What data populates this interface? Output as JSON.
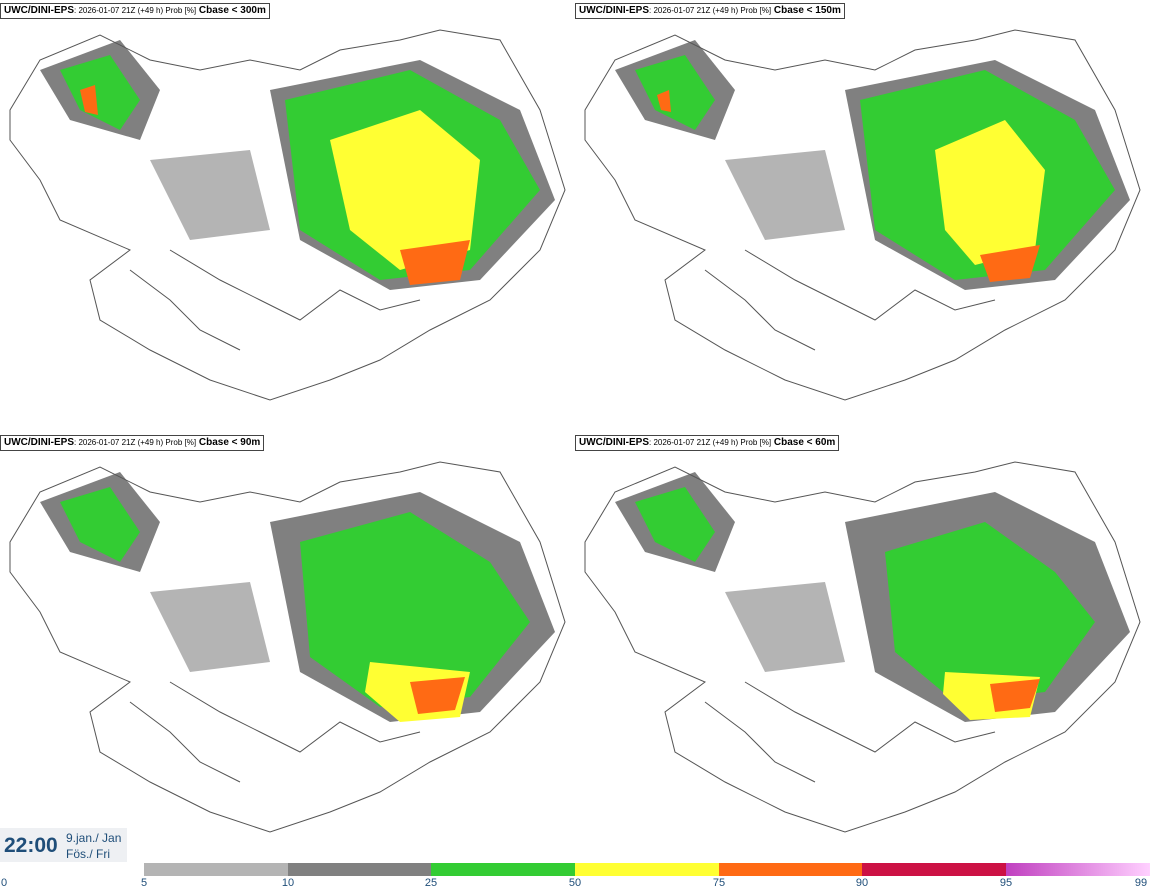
{
  "panels": [
    {
      "model": "UWC/DINI-EPS",
      "meta": ": 2026-01-07 21Z (+49 h) Prob [%]",
      "threshold": "Cbase < 300m"
    },
    {
      "model": "UWC/DINI-EPS",
      "meta": ": 2026-01-07 21Z (+49 h) Prob [%]",
      "threshold": "Cbase < 150m"
    },
    {
      "model": "UWC/DINI-EPS",
      "meta": ": 2026-01-07 21Z (+49 h) Prob [%]",
      "threshold": "Cbase < 90m"
    },
    {
      "model": "UWC/DINI-EPS",
      "meta": ": 2026-01-07 21Z (+49 h) Prob [%]",
      "threshold": "Cbase < 60m"
    }
  ],
  "time": {
    "clock": "22:00",
    "date_line1": "9.jan./ Jan",
    "date_line2": "Fös./ Fri"
  },
  "legend": {
    "labels": [
      "0",
      "5",
      "10",
      "25",
      "50",
      "75",
      "90",
      "95",
      "99"
    ],
    "colors": [
      "#b4b4b4",
      "#808080",
      "#33cc33",
      "#ffff33",
      "#ff6a14",
      "#cc1144",
      "#c040c0"
    ]
  }
}
